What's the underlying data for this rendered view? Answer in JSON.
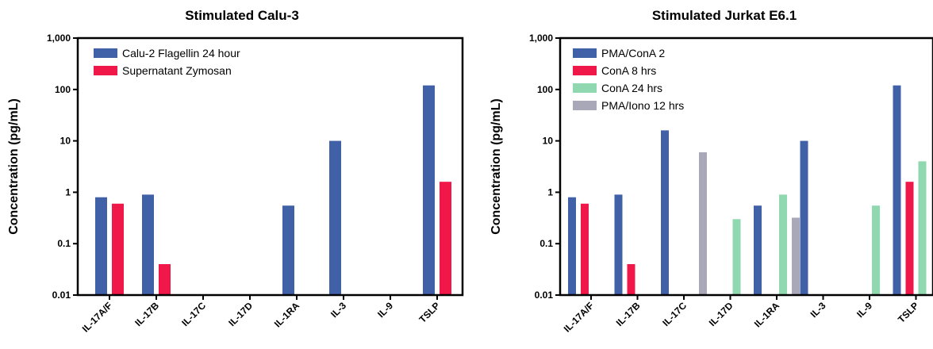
{
  "chart_data": [
    {
      "type": "bar",
      "title": "Stimulated Calu-3",
      "ylabel": "Concentration (pg/mL)",
      "yscale": "log",
      "ylim": [
        0.01,
        1000
      ],
      "yticks": [
        "0.01",
        "0.1",
        "1",
        "10",
        "100",
        "1,000"
      ],
      "categories": [
        "IL-17A/F",
        "IL-17B",
        "IL-17C",
        "IL-17D",
        "IL-1RA",
        "IL-3",
        "IL-9",
        "TSLP"
      ],
      "legend_position": "top-left",
      "series": [
        {
          "name": "Calu-2 Flagellin 24 hour",
          "color": "#4060a8",
          "values": [
            0.8,
            0.9,
            null,
            null,
            0.55,
            10,
            null,
            120
          ]
        },
        {
          "name": "Supernatant Zymosan",
          "color": "#f01848",
          "values": [
            0.6,
            0.04,
            null,
            null,
            null,
            null,
            null,
            1.6
          ]
        }
      ]
    },
    {
      "type": "bar",
      "title": "Stimulated Jurkat E6.1",
      "ylabel": "Concentration (pg/mL)",
      "yscale": "log",
      "ylim": [
        0.01,
        1000
      ],
      "yticks": [
        "0.01",
        "0.1",
        "1",
        "10",
        "100",
        "1,000"
      ],
      "categories": [
        "IL-17A/F",
        "IL-17B",
        "IL-17C",
        "IL-17D",
        "IL-1RA",
        "IL-3",
        "IL-9",
        "TSLP"
      ],
      "legend_position": "top-left",
      "series": [
        {
          "name": "PMA/ConA 2",
          "color": "#4060a8",
          "values": [
            0.8,
            0.9,
            16,
            null,
            0.55,
            10,
            null,
            120
          ]
        },
        {
          "name": "ConA 8 hrs",
          "color": "#f01848",
          "values": [
            0.6,
            0.04,
            null,
            null,
            null,
            null,
            null,
            1.6
          ]
        },
        {
          "name": "ConA 24 hrs",
          "color": "#90d8b0",
          "values": [
            null,
            null,
            null,
            0.3,
            0.9,
            null,
            0.55,
            4
          ]
        },
        {
          "name": "PMA/Iono 12 hrs",
          "color": "#a8a8b8",
          "values": [
            null,
            null,
            6,
            null,
            0.32,
            null,
            null,
            null
          ]
        }
      ]
    }
  ]
}
